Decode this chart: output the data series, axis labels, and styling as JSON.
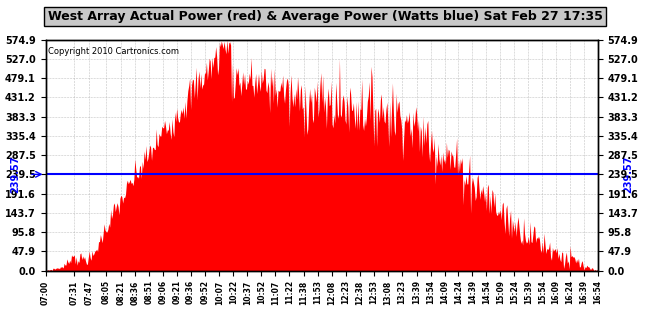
{
  "title": "West Array Actual Power (red) & Average Power (Watts blue) Sat Feb 27 17:35",
  "copyright": "Copyright 2010 Cartronics.com",
  "average_value": 239.57,
  "y_max": 574.9,
  "y_min": 0.0,
  "y_ticks": [
    574.9,
    527.0,
    479.1,
    431.2,
    383.3,
    335.4,
    287.5,
    239.5,
    191.6,
    143.7,
    95.8,
    47.9,
    0.0
  ],
  "background_color": "#ffffff",
  "fill_color": "#ff0000",
  "avg_line_color": "#0000ff",
  "grid_color": "#aaaaaa",
  "title_bg": "#c8c8c8",
  "x_labels": [
    "07:00",
    "07:31",
    "07:47",
    "08:05",
    "08:21",
    "08:36",
    "08:51",
    "09:06",
    "09:21",
    "09:36",
    "09:52",
    "10:07",
    "10:22",
    "10:37",
    "10:52",
    "11:07",
    "11:22",
    "11:38",
    "11:53",
    "12:08",
    "12:23",
    "12:38",
    "12:53",
    "13:08",
    "13:23",
    "13:39",
    "13:54",
    "14:09",
    "14:24",
    "14:39",
    "14:54",
    "15:09",
    "15:24",
    "15:39",
    "15:54",
    "16:09",
    "16:24",
    "16:39",
    "16:54"
  ]
}
